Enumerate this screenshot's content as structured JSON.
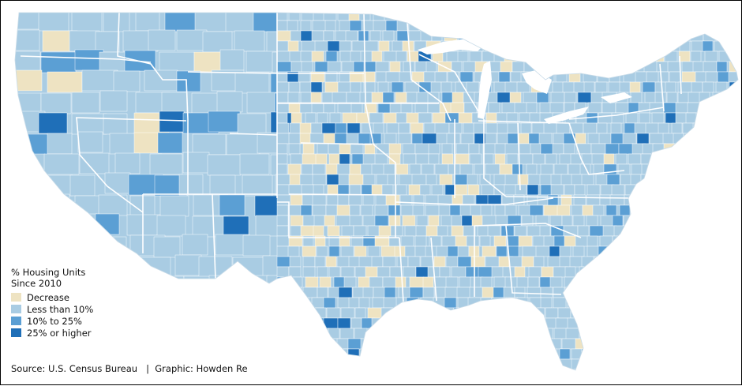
{
  "legend": {
    "title_line1": "% Housing Units",
    "title_line2": "Since 2010",
    "items": [
      {
        "label": "Decrease",
        "color": "#eee3c2"
      },
      {
        "label": "Less than 10%",
        "color": "#a9cce3"
      },
      {
        "label": "10% to 25%",
        "color": "#5b9fd4"
      },
      {
        "label": "25% or higher",
        "color": "#1f6fb8"
      }
    ]
  },
  "footer": {
    "source": "Source: U.S. Census Bureau",
    "separator": "|",
    "credit": "Graphic: Howden Re"
  },
  "map": {
    "base_color": "#a9cce3",
    "border_color": "#ffffff"
  }
}
